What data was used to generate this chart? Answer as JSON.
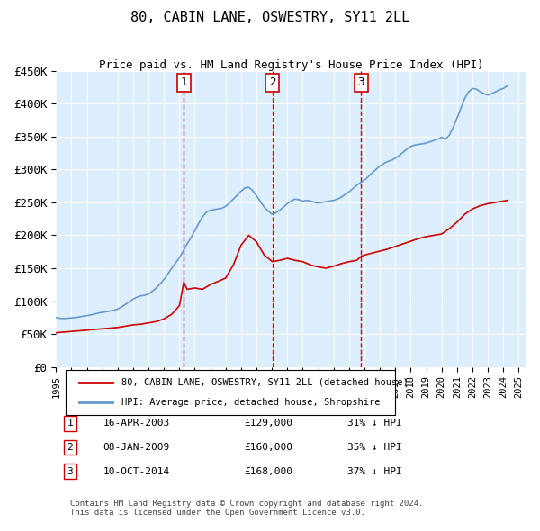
{
  "title": "80, CABIN LANE, OSWESTRY, SY11 2LL",
  "subtitle": "Price paid vs. HM Land Registry's House Price Index (HPI)",
  "legend_line1": "80, CABIN LANE, OSWESTRY, SY11 2LL (detached house)",
  "legend_line2": "HPI: Average price, detached house, Shropshire",
  "red_color": "#cc0000",
  "blue_color": "#6699cc",
  "background_color": "#ddeeff",
  "ylim": [
    0,
    450000
  ],
  "yticks": [
    0,
    50000,
    100000,
    150000,
    200000,
    250000,
    300000,
    350000,
    400000,
    450000
  ],
  "ytick_labels": [
    "£0",
    "£50K",
    "£100K",
    "£150K",
    "£200K",
    "£250K",
    "£300K",
    "£350K",
    "£400K",
    "£450K"
  ],
  "xlim_start": 1995.0,
  "xlim_end": 2025.5,
  "sales": [
    {
      "num": 1,
      "date": "16-APR-2003",
      "price": 129000,
      "pct": "31%",
      "x": 2003.29
    },
    {
      "num": 2,
      "date": "08-JAN-2009",
      "price": 160000,
      "pct": "35%",
      "x": 2009.03
    },
    {
      "num": 3,
      "date": "10-OCT-2014",
      "price": 168000,
      "pct": "37%",
      "x": 2014.78
    }
  ],
  "footer": "Contains HM Land Registry data © Crown copyright and database right 2024.\nThis data is licensed under the Open Government Licence v3.0.",
  "hpi_data": {
    "years": [
      1995.0,
      1995.25,
      1995.5,
      1995.75,
      1996.0,
      1996.25,
      1996.5,
      1996.75,
      1997.0,
      1997.25,
      1997.5,
      1997.75,
      1998.0,
      1998.25,
      1998.5,
      1998.75,
      1999.0,
      1999.25,
      1999.5,
      1999.75,
      2000.0,
      2000.25,
      2000.5,
      2000.75,
      2001.0,
      2001.25,
      2001.5,
      2001.75,
      2002.0,
      2002.25,
      2002.5,
      2002.75,
      2003.0,
      2003.25,
      2003.5,
      2003.75,
      2004.0,
      2004.25,
      2004.5,
      2004.75,
      2005.0,
      2005.25,
      2005.5,
      2005.75,
      2006.0,
      2006.25,
      2006.5,
      2006.75,
      2007.0,
      2007.25,
      2007.5,
      2007.75,
      2008.0,
      2008.25,
      2008.5,
      2008.75,
      2009.0,
      2009.25,
      2009.5,
      2009.75,
      2010.0,
      2010.25,
      2010.5,
      2010.75,
      2011.0,
      2011.25,
      2011.5,
      2011.75,
      2012.0,
      2012.25,
      2012.5,
      2012.75,
      2013.0,
      2013.25,
      2013.5,
      2013.75,
      2014.0,
      2014.25,
      2014.5,
      2014.75,
      2015.0,
      2015.25,
      2015.5,
      2015.75,
      2016.0,
      2016.25,
      2016.5,
      2016.75,
      2017.0,
      2017.25,
      2017.5,
      2017.75,
      2018.0,
      2018.25,
      2018.5,
      2018.75,
      2019.0,
      2019.25,
      2019.5,
      2019.75,
      2020.0,
      2020.25,
      2020.5,
      2020.75,
      2021.0,
      2021.25,
      2021.5,
      2021.75,
      2022.0,
      2022.25,
      2022.5,
      2022.75,
      2023.0,
      2023.25,
      2023.5,
      2023.75,
      2024.0,
      2024.25
    ],
    "values": [
      75000,
      74000,
      73500,
      74000,
      74500,
      75000,
      76000,
      77000,
      78000,
      79000,
      80500,
      82000,
      83000,
      84000,
      85000,
      86000,
      88000,
      91000,
      95000,
      99000,
      103000,
      106000,
      108000,
      109000,
      111000,
      115000,
      120000,
      126000,
      133000,
      141000,
      150000,
      158000,
      166000,
      176000,
      187000,
      196000,
      207000,
      218000,
      228000,
      235000,
      238000,
      239000,
      240000,
      241000,
      244000,
      249000,
      255000,
      261000,
      267000,
      272000,
      273000,
      268000,
      260000,
      251000,
      243000,
      237000,
      232000,
      234000,
      238000,
      243000,
      248000,
      252000,
      255000,
      254000,
      252000,
      253000,
      252000,
      250000,
      249000,
      250000,
      251000,
      252000,
      253000,
      255000,
      258000,
      262000,
      266000,
      271000,
      276000,
      280000,
      284000,
      289000,
      295000,
      300000,
      305000,
      309000,
      312000,
      314000,
      317000,
      321000,
      326000,
      331000,
      335000,
      337000,
      338000,
      339000,
      340000,
      342000,
      344000,
      346000,
      349000,
      346000,
      352000,
      364000,
      378000,
      393000,
      408000,
      418000,
      423000,
      422000,
      418000,
      415000,
      413000,
      415000,
      418000,
      421000,
      423000,
      427000
    ]
  },
  "red_data": {
    "years": [
      1995.0,
      1995.5,
      1996.0,
      1996.5,
      1997.0,
      1997.5,
      1998.0,
      1998.5,
      1999.0,
      1999.5,
      2000.0,
      2000.5,
      2001.0,
      2001.5,
      2002.0,
      2002.5,
      2003.0,
      2003.29,
      2003.5,
      2004.0,
      2004.5,
      2005.0,
      2005.5,
      2006.0,
      2006.5,
      2007.0,
      2007.5,
      2008.0,
      2008.5,
      2009.03,
      2009.5,
      2010.0,
      2010.5,
      2011.0,
      2011.5,
      2012.0,
      2012.5,
      2013.0,
      2013.5,
      2014.0,
      2014.5,
      2014.78,
      2015.0,
      2015.5,
      2016.0,
      2016.5,
      2017.0,
      2017.5,
      2018.0,
      2018.5,
      2019.0,
      2019.5,
      2020.0,
      2020.5,
      2021.0,
      2021.5,
      2022.0,
      2022.5,
      2023.0,
      2023.5,
      2024.0,
      2024.25
    ],
    "values": [
      52000,
      53000,
      54000,
      55000,
      56000,
      57000,
      58000,
      59000,
      60000,
      62000,
      64000,
      65000,
      67000,
      69000,
      73000,
      80000,
      93000,
      129000,
      118000,
      120000,
      118000,
      125000,
      130000,
      135000,
      155000,
      185000,
      200000,
      190000,
      170000,
      160000,
      162000,
      165000,
      162000,
      160000,
      155000,
      152000,
      150000,
      153000,
      157000,
      160000,
      162000,
      168000,
      170000,
      173000,
      176000,
      179000,
      183000,
      187000,
      191000,
      195000,
      198000,
      200000,
      202000,
      210000,
      220000,
      232000,
      240000,
      245000,
      248000,
      250000,
      252000,
      253000
    ]
  }
}
